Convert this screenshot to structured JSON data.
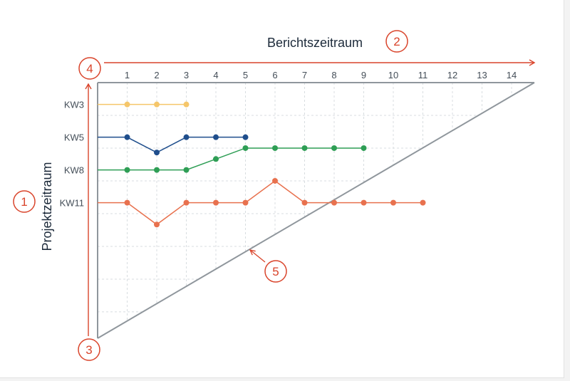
{
  "chart_data": {
    "type": "line",
    "title": "Berichtszeitraum",
    "xlabel": "Berichtszeitraum",
    "ylabel": "Projektzeitraum",
    "x": [
      1,
      2,
      3,
      4,
      5,
      6,
      7,
      8,
      9,
      10,
      11,
      12,
      13,
      14
    ],
    "x_tick_labels": [
      "1",
      "2",
      "3",
      "4",
      "5",
      "6",
      "7",
      "8",
      "9",
      "10",
      "11",
      "12",
      "13",
      "14"
    ],
    "y_tick_labels": [
      "KW11",
      "KW8",
      "KW5",
      "KW3"
    ],
    "y_tick_values": [
      11,
      8,
      5,
      3
    ],
    "y_axis_direction": "reversed",
    "ylim": [
      15,
      0
    ],
    "grid": true,
    "series": [
      {
        "color": "#e8714e",
        "x": [
          1,
          2,
          3,
          4,
          5,
          6,
          7,
          8,
          9,
          10,
          11
        ],
        "values": [
          11,
          13,
          11,
          11,
          11,
          9,
          11,
          11,
          11,
          11,
          11
        ]
      },
      {
        "color": "#2e9e55",
        "x": [
          1,
          2,
          3,
          4,
          5,
          6,
          7,
          8,
          9
        ],
        "values": [
          8,
          8,
          8,
          7,
          6,
          6,
          6,
          6,
          6
        ]
      },
      {
        "color": "#1f4e8c",
        "x": [
          1,
          2,
          3,
          4,
          5
        ],
        "values": [
          5,
          6.4,
          5,
          5,
          5
        ]
      },
      {
        "color": "#f5c66a",
        "x": [
          1,
          2,
          3
        ],
        "values": [
          2,
          2,
          2
        ]
      }
    ],
    "annotations": [
      {
        "label": "1",
        "target": "Projektzeitraum"
      },
      {
        "label": "2",
        "target": "Berichtszeitraum"
      },
      {
        "label": "3",
        "target": "origin"
      },
      {
        "label": "4",
        "target": "axes-corner"
      },
      {
        "label": "5",
        "target": "diagonal-point"
      }
    ],
    "colors": {
      "accent": "#d9442b",
      "axis": "#8f969c",
      "grid": "#d8dde0",
      "text": "#1c2a3a",
      "tick": "#444e58"
    }
  }
}
